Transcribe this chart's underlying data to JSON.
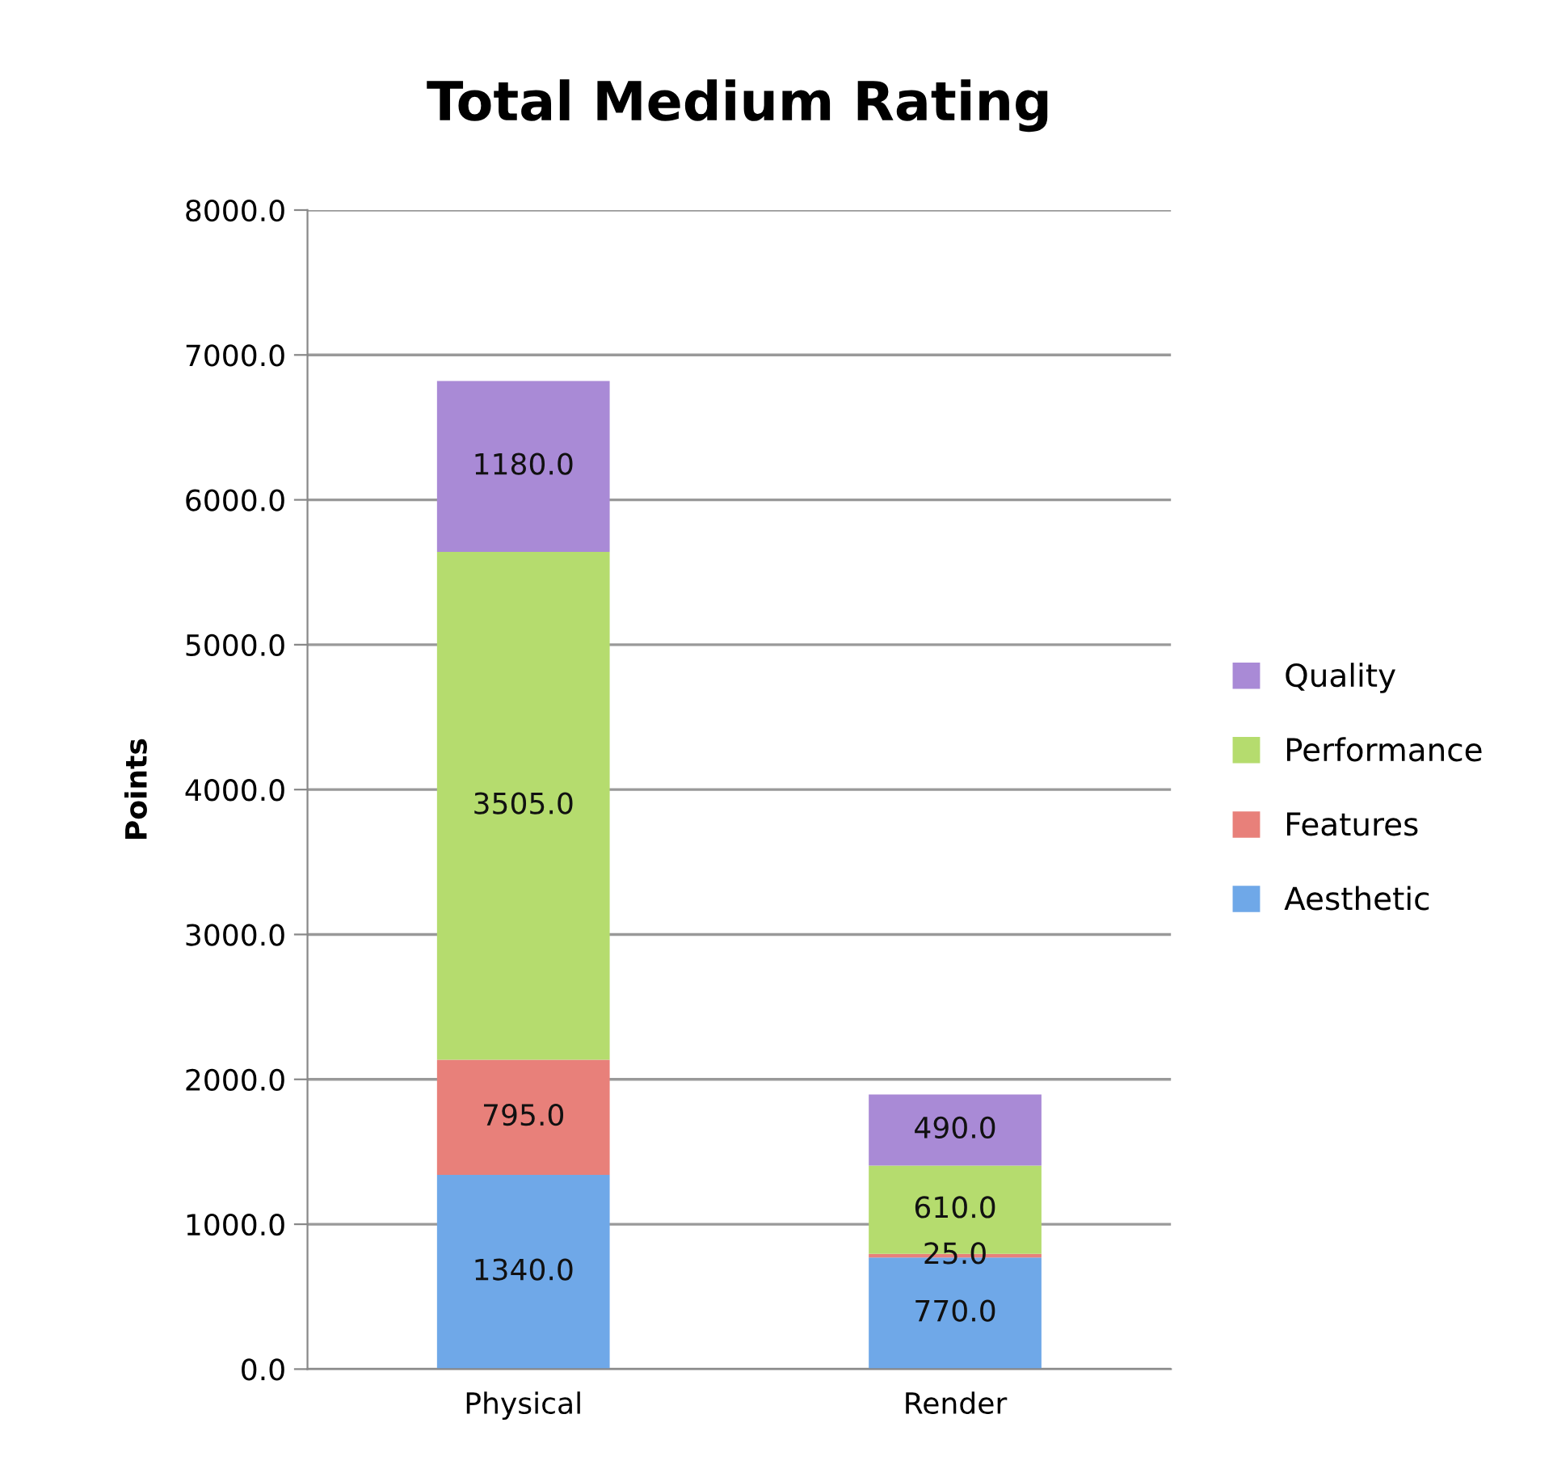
{
  "chart_data": {
    "type": "bar",
    "title": "Total Medium Rating",
    "ylabel": "Points",
    "stacked": true,
    "categories": [
      "Physical",
      "Render"
    ],
    "series": [
      {
        "name": "Aesthetic",
        "color": "#6fa8e8",
        "values": [
          1340,
          770
        ],
        "value_labels": [
          "1340.0",
          "770.0"
        ]
      },
      {
        "name": "Features",
        "color": "#e8807a",
        "values": [
          795,
          25
        ],
        "value_labels": [
          "795.0",
          "25.0"
        ]
      },
      {
        "name": "Performance",
        "color": "#b5dc6e",
        "values": [
          3505,
          610
        ],
        "value_labels": [
          "3505.0",
          "610.0"
        ]
      },
      {
        "name": "Quality",
        "color": "#a98ad6",
        "values": [
          1180,
          490
        ],
        "value_labels": [
          "1180.0",
          "490.0"
        ]
      }
    ],
    "ylim": [
      0,
      8000
    ],
    "yticks": [
      {
        "value": 0,
        "label": "0.0"
      },
      {
        "value": 1000,
        "label": "1000.0"
      },
      {
        "value": 2000,
        "label": "2000.0"
      },
      {
        "value": 3000,
        "label": "3000.0"
      },
      {
        "value": 4000,
        "label": "4000.0"
      },
      {
        "value": 5000,
        "label": "5000.0"
      },
      {
        "value": 6000,
        "label": "6000.0"
      },
      {
        "value": 7000,
        "label": "7000.0"
      },
      {
        "value": 8000,
        "label": "8000.0"
      }
    ],
    "grid": "y",
    "legend": "right"
  }
}
